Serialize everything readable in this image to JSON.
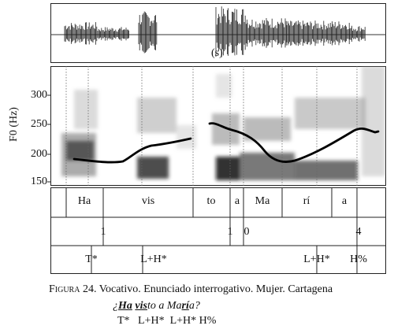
{
  "waveform_marker": "(s)",
  "y_axis": {
    "label": "F0 (Hz)",
    "ticks": [
      "300",
      "250",
      "200",
      "150"
    ]
  },
  "tiers": {
    "words": [
      "Ha",
      "vis",
      "to",
      "a",
      "Ma",
      "rí",
      "a"
    ],
    "break_indices": [
      "1",
      "1",
      "0",
      "4"
    ],
    "tones": [
      "T*",
      "L+H*",
      "L+H*",
      "H%"
    ]
  },
  "caption": {
    "figure_label": "Figura 24.",
    "figure_text": "Vocativo. Enunciado interrogativo. Mujer. Cartagena",
    "example": {
      "open_q": "¿",
      "ha": "Ha",
      "vis": "vis",
      "to_a_ma": "to a Ma",
      "ri": "rí",
      "a_q": "a?"
    },
    "tone_line": "T*   L+H*  L+H* H%"
  }
}
